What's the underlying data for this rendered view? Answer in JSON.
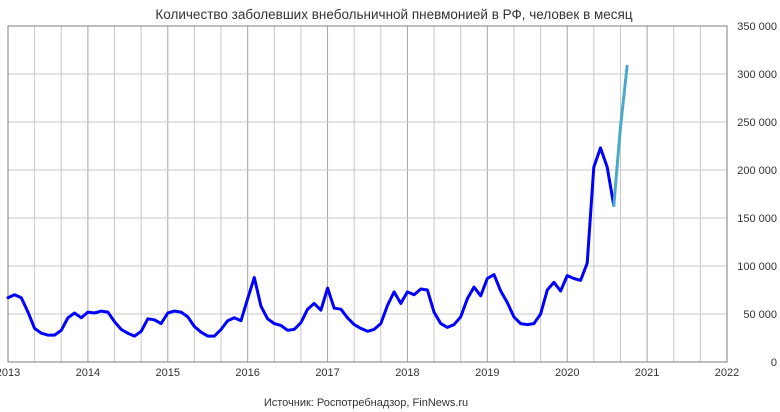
{
  "chart_data": {
    "type": "line",
    "title": "Количество заболевших внебольничной пневмонией в РФ, человек в месяц",
    "source": "Источник: Роспотребнадзор, FinNews.ru",
    "x_range": [
      2013.0,
      2022.0
    ],
    "ylim": [
      0,
      350000
    ],
    "y_axis_side": "right",
    "grid": true,
    "x_tick_labels": [
      "2013",
      "2014",
      "2015",
      "2016",
      "2017",
      "2018",
      "2019",
      "2020",
      "2021",
      "2022"
    ],
    "y_tick_labels": [
      "0",
      "50 000",
      "100 000",
      "150 000",
      "200 000",
      "250 000",
      "300 000",
      "350 000"
    ],
    "series": [
      {
        "color": "#0000ff",
        "x": [
          2013.0,
          2013.083,
          2013.167,
          2013.25,
          2013.333,
          2013.417,
          2013.5,
          2013.583,
          2013.667,
          2013.75,
          2013.833,
          2013.917,
          2014.0,
          2014.083,
          2014.167,
          2014.25,
          2014.333,
          2014.417,
          2014.5,
          2014.583,
          2014.667,
          2014.75,
          2014.833,
          2014.917,
          2015.0,
          2015.083,
          2015.167,
          2015.25,
          2015.333,
          2015.417,
          2015.5,
          2015.583,
          2015.667,
          2015.75,
          2015.833,
          2015.917,
          2016.0,
          2016.083,
          2016.167,
          2016.25,
          2016.333,
          2016.417,
          2016.5,
          2016.583,
          2016.667,
          2016.75,
          2016.833,
          2016.917,
          2017.0,
          2017.083,
          2017.167,
          2017.25,
          2017.333,
          2017.417,
          2017.5,
          2017.583,
          2017.667,
          2017.75,
          2017.833,
          2017.917,
          2018.0,
          2018.083,
          2018.167,
          2018.25,
          2018.333,
          2018.417,
          2018.5,
          2018.583,
          2018.667,
          2018.75,
          2018.833,
          2018.917,
          2019.0,
          2019.083,
          2019.167,
          2019.25,
          2019.333,
          2019.417,
          2019.5,
          2019.583,
          2019.667,
          2019.75,
          2019.833,
          2019.917,
          2020.0,
          2020.083,
          2020.167,
          2020.25,
          2020.333,
          2020.417,
          2020.5,
          2020.583
        ],
        "y": [
          67000,
          70000,
          67000,
          52000,
          35000,
          30000,
          28000,
          28000,
          33000,
          46000,
          51000,
          46000,
          52000,
          51000,
          53000,
          52000,
          42000,
          34000,
          30000,
          27000,
          32000,
          45000,
          44000,
          40000,
          51000,
          53000,
          52000,
          47000,
          37000,
          31000,
          27000,
          27000,
          34000,
          43000,
          46000,
          43000,
          66000,
          88000,
          58000,
          45000,
          40000,
          38000,
          33000,
          34000,
          41000,
          55000,
          61000,
          54000,
          77000,
          56000,
          55000,
          46000,
          39000,
          35000,
          32000,
          34000,
          40000,
          59000,
          73000,
          61000,
          73000,
          70000,
          76000,
          75000,
          52000,
          40000,
          36000,
          39000,
          47000,
          66000,
          78000,
          69000,
          87000,
          91000,
          74000,
          62000,
          47000,
          40000,
          39000,
          40000,
          50000,
          75000,
          83000,
          74000,
          90000,
          87000,
          85000,
          103000,
          203000,
          223000,
          203000,
          163000
        ]
      },
      {
        "color": "#4aaac8",
        "x": [
          2020.583,
          2020.667,
          2020.75
        ],
        "y": [
          163000,
          245000,
          308000
        ]
      }
    ]
  }
}
